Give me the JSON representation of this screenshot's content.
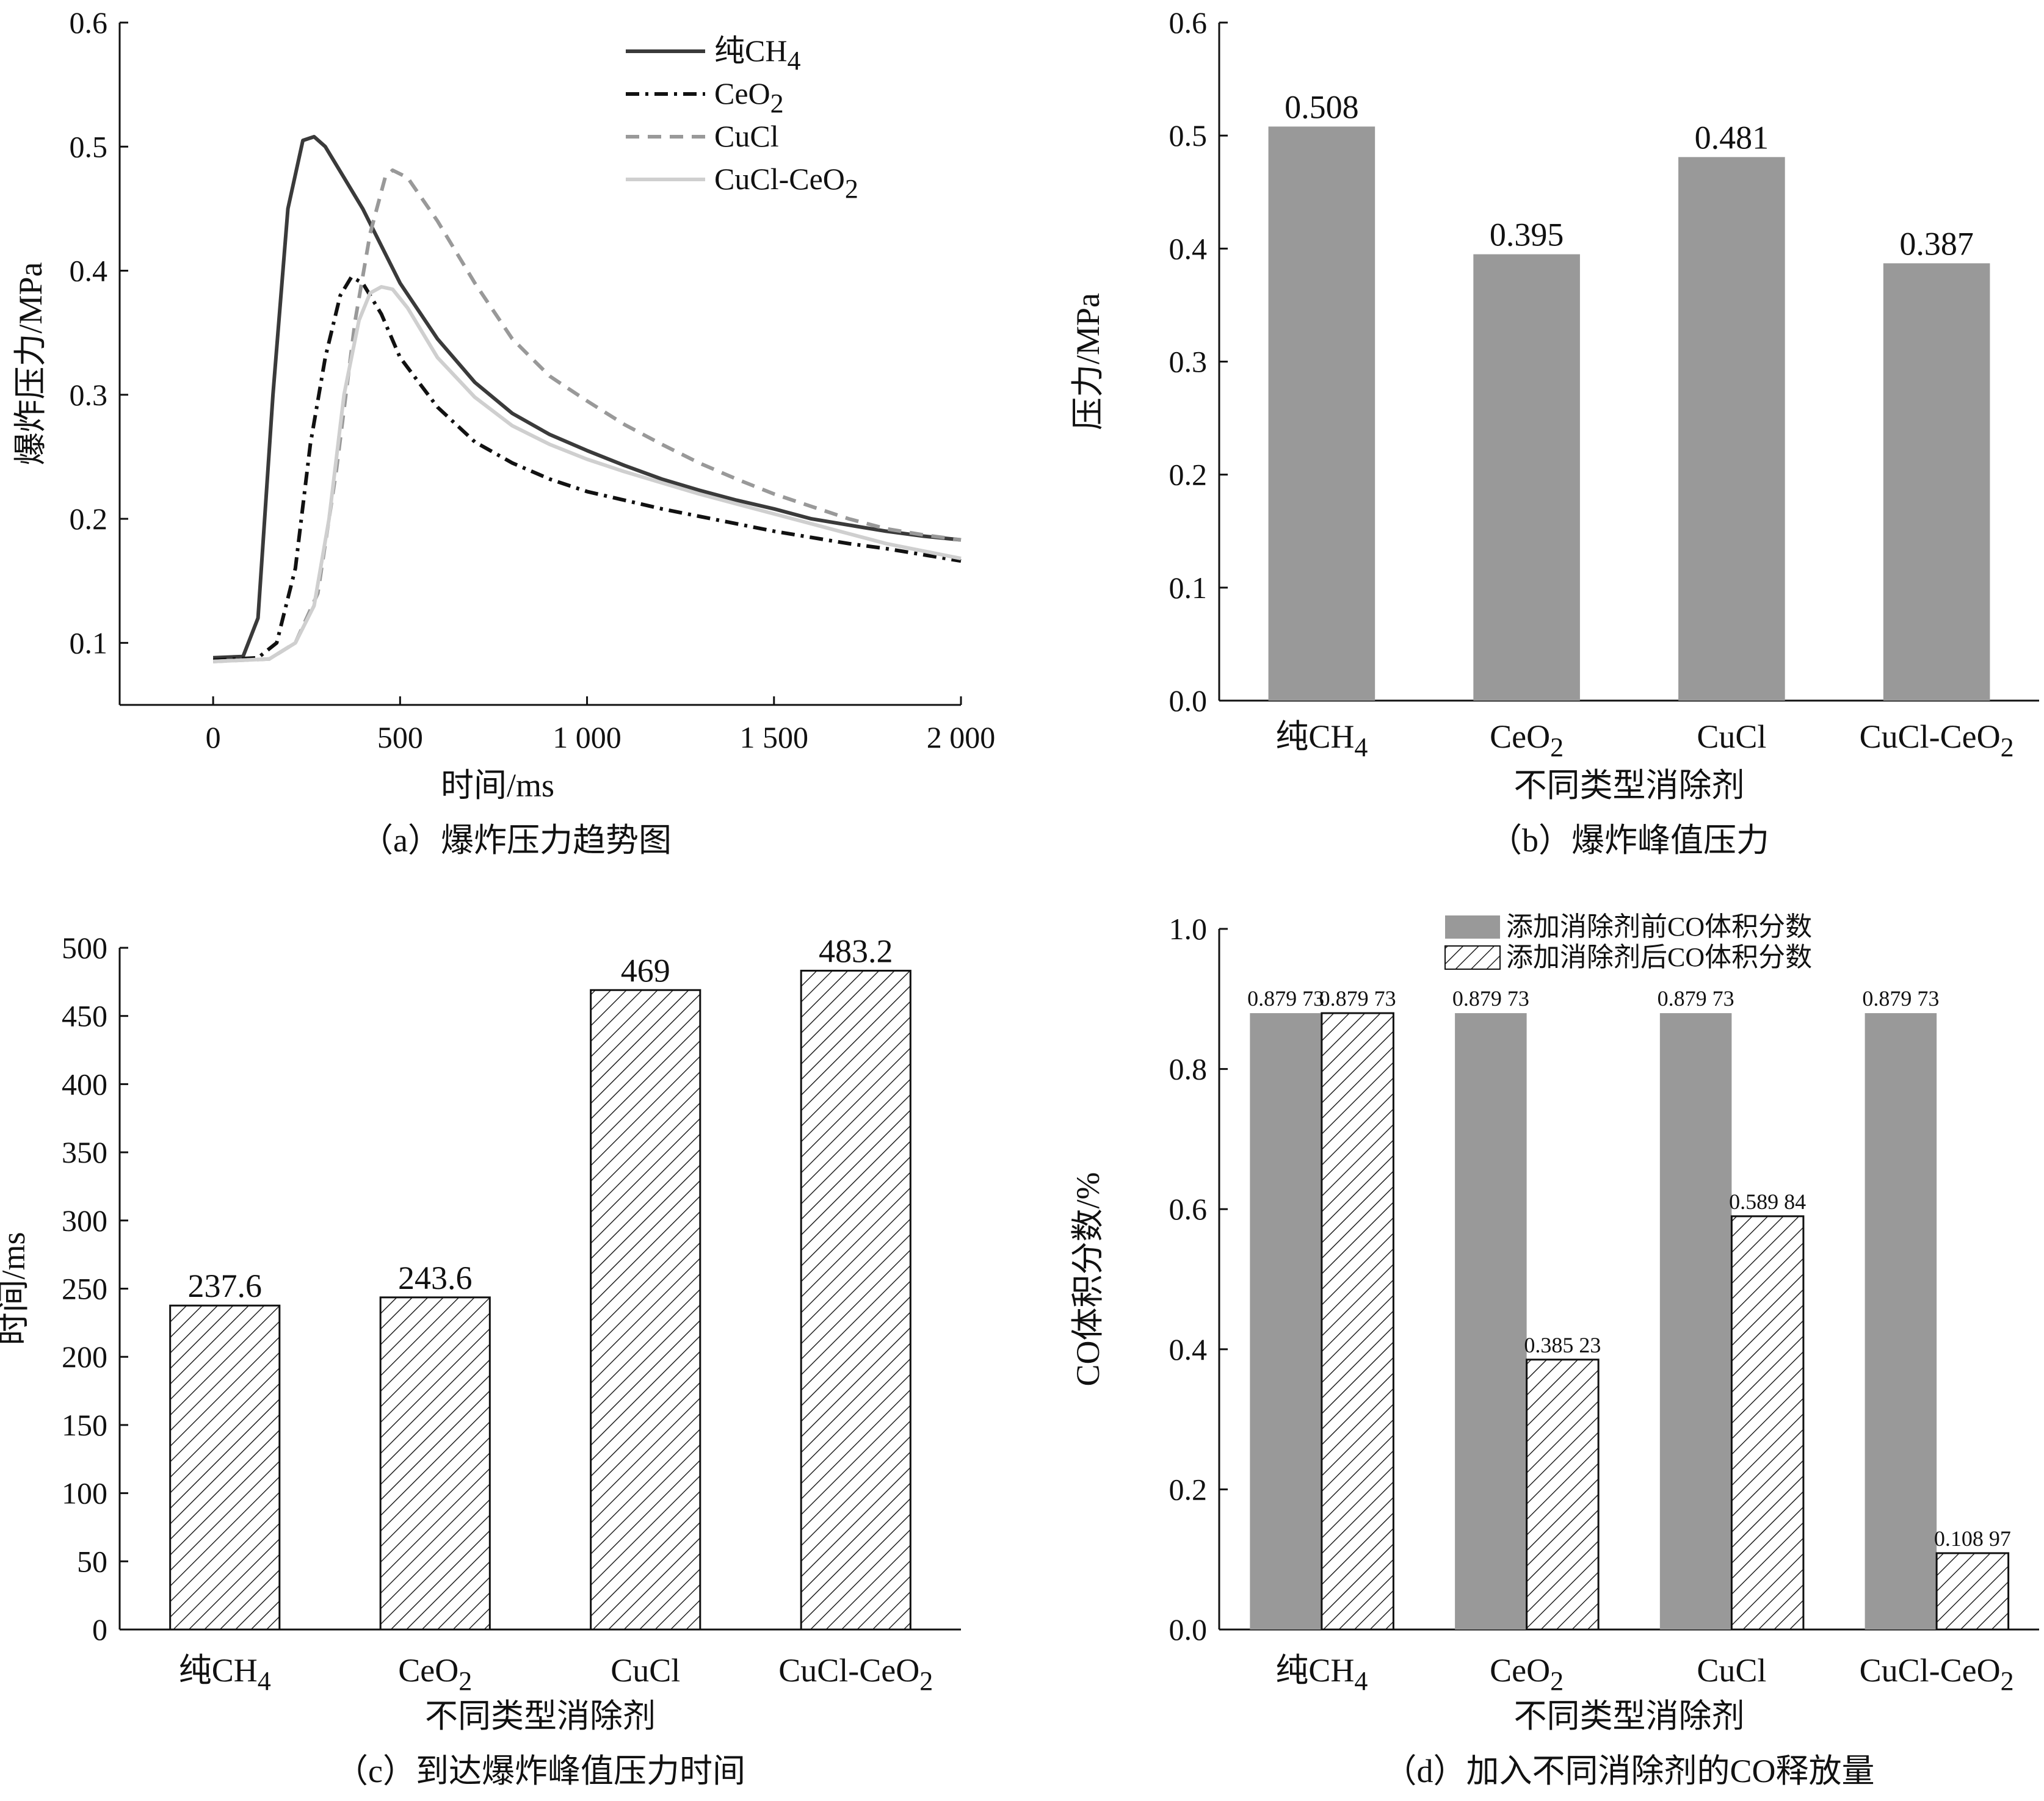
{
  "chart_data": [
    {
      "id": "a",
      "type": "line",
      "caption": "（a）爆炸压力趋势图",
      "xlabel": "时间/ms",
      "ylabel": "爆炸压力/MPa",
      "xlim": [
        -250,
        2000
      ],
      "ylim": [
        0.05,
        0.6
      ],
      "xticks": [
        0,
        500,
        1000,
        1500,
        2000
      ],
      "xtick_labels": [
        "0",
        "500",
        "1 000",
        "1 500",
        "2 000"
      ],
      "yticks": [
        0.1,
        0.2,
        0.3,
        0.4,
        0.5,
        0.6
      ],
      "ytick_labels": [
        "0.1",
        "0.2",
        "0.3",
        "0.4",
        "0.5",
        "0.6"
      ],
      "legend_position": "top-right",
      "series": [
        {
          "name": "纯CH",
          "name_sub": "4",
          "color": "#3a3a3a",
          "dash": "solid",
          "x": [
            0,
            80,
            120,
            160,
            200,
            240,
            270,
            300,
            350,
            400,
            450,
            500,
            600,
            700,
            800,
            900,
            1000,
            1100,
            1200,
            1300,
            1400,
            1500,
            1600,
            1700,
            1800,
            1900,
            2000
          ],
          "y": [
            0.088,
            0.089,
            0.12,
            0.3,
            0.45,
            0.505,
            0.508,
            0.5,
            0.475,
            0.45,
            0.42,
            0.39,
            0.345,
            0.31,
            0.285,
            0.268,
            0.255,
            0.243,
            0.232,
            0.223,
            0.215,
            0.208,
            0.2,
            0.195,
            0.19,
            0.186,
            0.183
          ]
        },
        {
          "name": "CeO",
          "name_sub": "2",
          "color": "#111111",
          "dash": "dashdot",
          "x": [
            0,
            120,
            170,
            220,
            260,
            300,
            340,
            370,
            400,
            450,
            500,
            600,
            700,
            800,
            900,
            1000,
            1100,
            1200,
            1300,
            1400,
            1500,
            1600,
            1700,
            1800,
            1900,
            2000
          ],
          "y": [
            0.086,
            0.088,
            0.1,
            0.16,
            0.26,
            0.33,
            0.38,
            0.395,
            0.39,
            0.365,
            0.33,
            0.29,
            0.262,
            0.245,
            0.232,
            0.222,
            0.215,
            0.208,
            0.202,
            0.196,
            0.19,
            0.185,
            0.18,
            0.176,
            0.171,
            0.166
          ]
        },
        {
          "name": "CuCl",
          "name_sub": "",
          "color": "#999999",
          "dash": "dash",
          "x": [
            0,
            150,
            220,
            280,
            330,
            380,
            420,
            460,
            480,
            520,
            600,
            700,
            800,
            900,
            1000,
            1100,
            1200,
            1300,
            1400,
            1500,
            1600,
            1700,
            1800,
            1900,
            2000
          ],
          "y": [
            0.085,
            0.087,
            0.1,
            0.14,
            0.24,
            0.36,
            0.43,
            0.475,
            0.481,
            0.475,
            0.44,
            0.39,
            0.345,
            0.315,
            0.295,
            0.276,
            0.26,
            0.245,
            0.232,
            0.22,
            0.21,
            0.2,
            0.192,
            0.187,
            0.183
          ]
        },
        {
          "name": "CuCl-CeO",
          "name_sub": "2",
          "color": "#cfcfcf",
          "dash": "solid",
          "x": [
            0,
            150,
            220,
            270,
            310,
            350,
            390,
            420,
            450,
            480,
            520,
            600,
            700,
            800,
            900,
            1000,
            1100,
            1200,
            1300,
            1400,
            1500,
            1600,
            1700,
            1800,
            1900,
            2000
          ],
          "y": [
            0.085,
            0.087,
            0.1,
            0.13,
            0.2,
            0.3,
            0.36,
            0.382,
            0.387,
            0.385,
            0.37,
            0.33,
            0.298,
            0.275,
            0.26,
            0.248,
            0.238,
            0.229,
            0.22,
            0.212,
            0.204,
            0.196,
            0.188,
            0.18,
            0.174,
            0.168
          ]
        }
      ]
    },
    {
      "id": "b",
      "type": "bar",
      "caption": "（b）爆炸峰值压力",
      "xlabel": "不同类型消除剂",
      "ylabel": "压力/MPa",
      "ylim": [
        0,
        0.6
      ],
      "yticks": [
        0.0,
        0.1,
        0.2,
        0.3,
        0.4,
        0.5,
        0.6
      ],
      "ytick_labels": [
        "0.0",
        "0.1",
        "0.2",
        "0.3",
        "0.4",
        "0.5",
        "0.6"
      ],
      "categories": [
        {
          "main": "纯CH",
          "sub": "4"
        },
        {
          "main": "CeO",
          "sub": "2"
        },
        {
          "main": "CuCl",
          "sub": ""
        },
        {
          "main": "CuCl-CeO",
          "sub": "2"
        }
      ],
      "values": [
        0.508,
        0.395,
        0.481,
        0.387
      ],
      "value_labels": [
        "0.508",
        "0.395",
        "0.481",
        "0.387"
      ],
      "fill": "#999999"
    },
    {
      "id": "c",
      "type": "bar",
      "caption": "（c）到达爆炸峰值压力时间",
      "xlabel": "不同类型消除剂",
      "ylabel": "时间/ms",
      "ylim": [
        0,
        500
      ],
      "yticks": [
        0,
        50,
        100,
        150,
        200,
        250,
        300,
        350,
        400,
        450,
        500
      ],
      "ytick_labels": [
        "0",
        "50",
        "100",
        "150",
        "200",
        "250",
        "300",
        "350",
        "400",
        "450",
        "500"
      ],
      "categories": [
        {
          "main": "纯CH",
          "sub": "4"
        },
        {
          "main": "CeO",
          "sub": "2"
        },
        {
          "main": "CuCl",
          "sub": ""
        },
        {
          "main": "CuCl-CeO",
          "sub": "2"
        }
      ],
      "values": [
        237.6,
        243.6,
        469,
        483.2
      ],
      "value_labels": [
        "237.6",
        "243.6",
        "469",
        "483.2"
      ],
      "fill": "hatch"
    },
    {
      "id": "d",
      "type": "bar",
      "caption": "（d）加入不同消除剂的CO释放量",
      "xlabel": "不同类型消除剂",
      "ylabel": "CO体积分数/%",
      "ylim": [
        0,
        1.0
      ],
      "yticks": [
        0.0,
        0.2,
        0.4,
        0.6,
        0.8,
        1.0
      ],
      "ytick_labels": [
        "0.0",
        "0.2",
        "0.4",
        "0.6",
        "0.8",
        "1.0"
      ],
      "legend_position": "top-right",
      "categories": [
        {
          "main": "纯CH",
          "sub": "4"
        },
        {
          "main": "CeO",
          "sub": "2"
        },
        {
          "main": "CuCl",
          "sub": ""
        },
        {
          "main": "CuCl-CeO",
          "sub": "2"
        }
      ],
      "series": [
        {
          "name": "添加消除剂前CO体积分数",
          "fill": "#999999",
          "values": [
            0.87973,
            0.87973,
            0.87973,
            0.87973
          ],
          "value_labels": [
            "0.879 73",
            "0.879 73",
            "0.879 73",
            "0.879 73"
          ]
        },
        {
          "name": "添加消除剂后CO体积分数",
          "fill": "hatch",
          "values": [
            0.87973,
            0.38523,
            0.58984,
            0.10897
          ],
          "value_labels": [
            "0.879 73",
            "0.385 23",
            "0.589 84",
            "0.108 97"
          ]
        }
      ]
    }
  ]
}
